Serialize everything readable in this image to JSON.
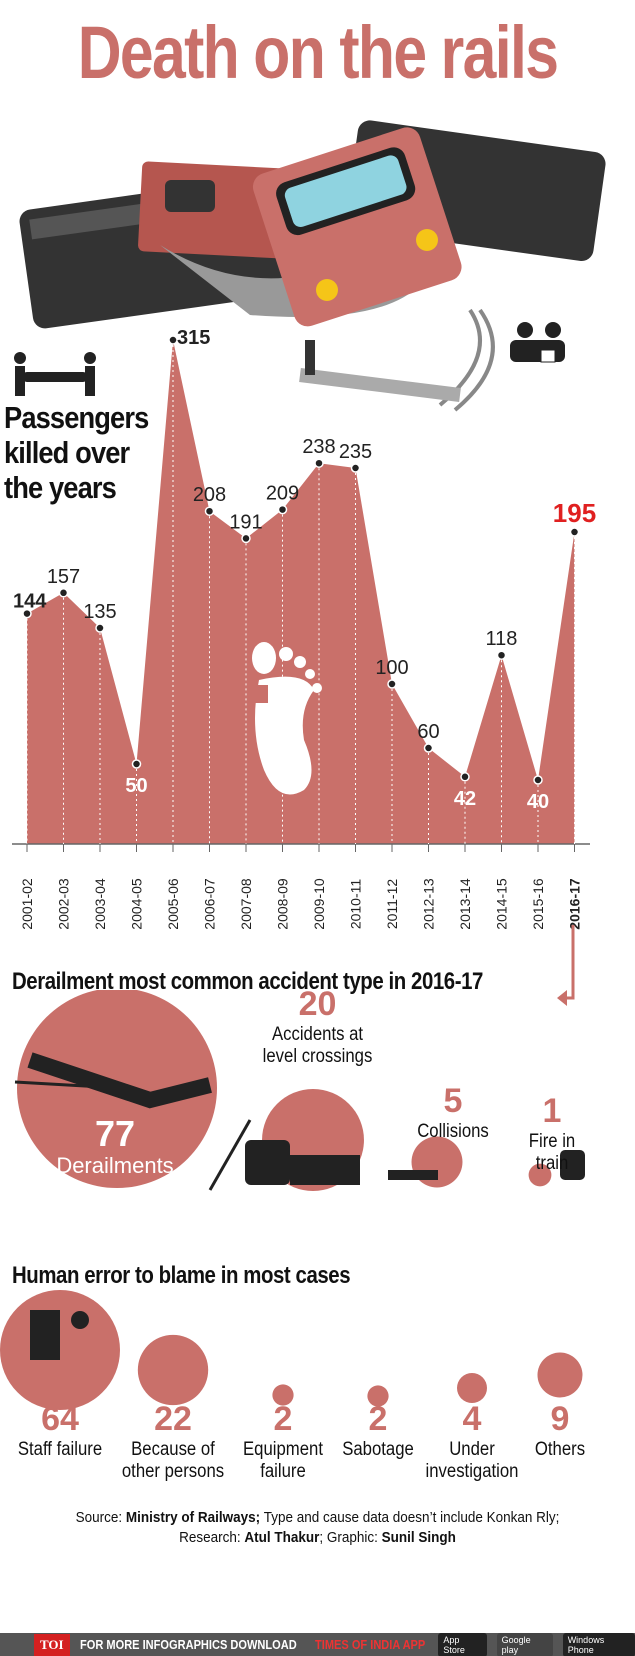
{
  "title": "Death on the rails",
  "subtitle_lines": [
    "Passengers",
    "killed over",
    "the years"
  ],
  "colors": {
    "accent": "#c9706a",
    "highlight": "#e02020",
    "footer_bg": "#555555"
  },
  "chart_data": {
    "type": "area",
    "title": "Passengers killed over the years",
    "categories": [
      "2001-02",
      "2002-03",
      "2003-04",
      "2004-05",
      "2005-06",
      "2006-07",
      "2007-08",
      "2008-09",
      "2009-10",
      "2010-11",
      "2011-12",
      "2012-13",
      "2013-14",
      "2014-15",
      "2015-16",
      "2016-17"
    ],
    "values": [
      144,
      157,
      135,
      50,
      315,
      208,
      191,
      209,
      238,
      235,
      100,
      60,
      42,
      118,
      40,
      195
    ],
    "label_placement": [
      "left",
      "above",
      "above",
      "below",
      "above",
      "above",
      "above",
      "above",
      "above",
      "above",
      "above",
      "above",
      "below",
      "above",
      "below",
      "above-highlight"
    ],
    "ylim": [
      0,
      330
    ],
    "grid": false
  },
  "accident_types": {
    "heading": "Derailment most common accident type in 2016-17",
    "items": [
      {
        "value": 77,
        "label": "Derailments"
      },
      {
        "value": 20,
        "label": "Accidents at level crossings"
      },
      {
        "value": 5,
        "label": "Collisions"
      },
      {
        "value": 1,
        "label": "Fire in train"
      }
    ]
  },
  "causes": {
    "heading": "Human error to blame in most cases",
    "items": [
      {
        "value": 64,
        "label": "Staff failure"
      },
      {
        "value": 22,
        "label": "Because of other persons"
      },
      {
        "value": 2,
        "label": "Equipment failure"
      },
      {
        "value": 2,
        "label": "Sabotage"
      },
      {
        "value": 4,
        "label": "Under investigation"
      },
      {
        "value": 9,
        "label": "Others"
      }
    ]
  },
  "source": {
    "prefix": "Source: ",
    "source_name": "Ministry of Railways;",
    "note": " Type and cause data doesn’t include Konkan Rly;",
    "research_label": "Research: ",
    "researcher": "Atul Thakur",
    "graphic_label": "; Graphic: ",
    "graphic_by": "Sunil Singh"
  },
  "footer": {
    "logo": "TOI",
    "text": "FOR MORE  INFOGRAPHICS DOWNLOAD",
    "app": "TIMES OF INDIA  APP",
    "stores": [
      "App Store",
      "Google play",
      "Windows Phone"
    ]
  }
}
